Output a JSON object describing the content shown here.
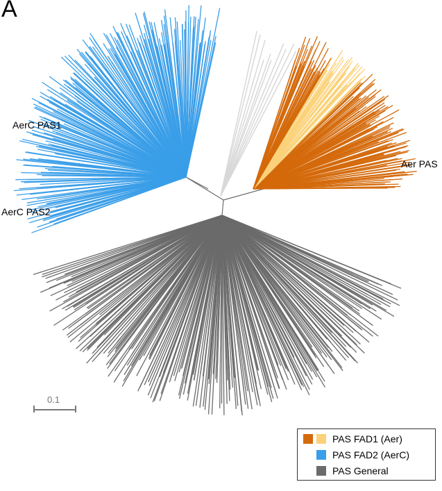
{
  "panel_letter": "A",
  "clade_labels": {
    "aerc_pas1": "AerC PAS1",
    "aerc_pas2": "AerC PAS2",
    "aer_pas": "Aer PAS"
  },
  "scale_bar": {
    "label": "0.1"
  },
  "legend": {
    "fad1": "PAS FAD1 (Aer)",
    "fad2": "PAS FAD2 (AerC)",
    "general": "PAS General"
  },
  "colors": {
    "fad1_dark": "#d46a0c",
    "fad1_light": "#fbd27a",
    "fad2": "#3a9ee8",
    "general": "#6b6b6b",
    "unclassified": "#d8d8d8"
  }
}
